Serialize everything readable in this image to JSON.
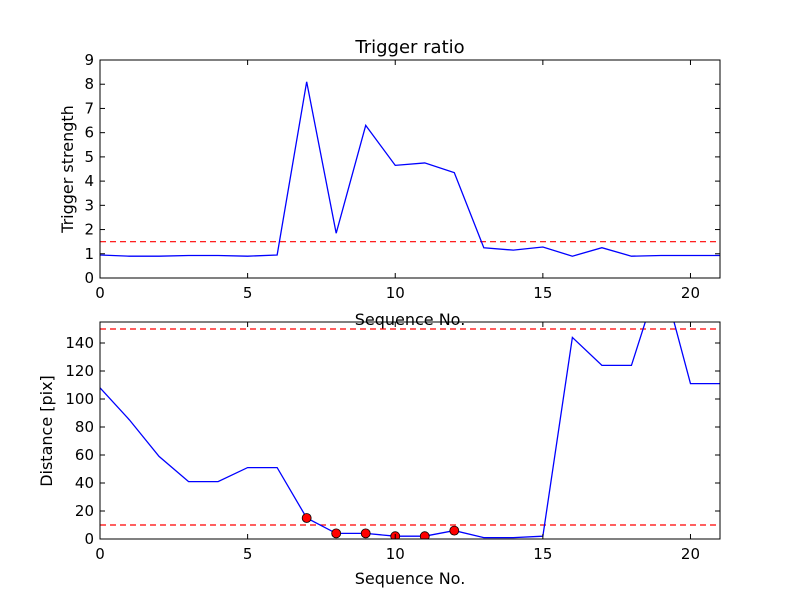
{
  "chart_data": [
    {
      "type": "line",
      "title": "Trigger ratio",
      "xlabel": "Sequence No.",
      "ylabel": "Trigger strength",
      "xlim": [
        0,
        21
      ],
      "ylim": [
        0,
        9
      ],
      "xticks": [
        0,
        5,
        10,
        15,
        20
      ],
      "yticks": [
        0,
        1,
        2,
        3,
        4,
        5,
        6,
        7,
        8,
        9
      ],
      "grid": false,
      "series": [
        {
          "color": "#0000ff",
          "style": "solid",
          "x": [
            0,
            1,
            2,
            3,
            4,
            5,
            6,
            7,
            8,
            9,
            10,
            11,
            12,
            13,
            14,
            15,
            16,
            17,
            18,
            19,
            20,
            21
          ],
          "y": [
            0.95,
            0.9,
            0.9,
            0.93,
            0.93,
            0.9,
            0.95,
            8.1,
            1.85,
            6.3,
            4.65,
            4.75,
            4.35,
            1.25,
            1.15,
            1.28,
            0.9,
            1.25,
            0.9,
            0.93,
            0.93,
            0.93
          ]
        }
      ],
      "hlines": [
        {
          "y": 1.5,
          "color": "#ff0000",
          "style": "dashed"
        }
      ]
    },
    {
      "type": "line",
      "title": "",
      "xlabel": "Sequence No.",
      "ylabel": "Distance [pix]",
      "xlim": [
        0,
        21
      ],
      "ylim": [
        0,
        155
      ],
      "xticks": [
        0,
        5,
        10,
        15,
        20
      ],
      "yticks": [
        0,
        20,
        40,
        60,
        80,
        100,
        120,
        140
      ],
      "grid": false,
      "series": [
        {
          "color": "#0000ff",
          "style": "solid",
          "x": [
            0,
            1,
            2,
            3,
            4,
            5,
            6,
            7,
            8,
            9,
            10,
            11,
            12,
            13,
            14,
            15,
            16,
            17,
            18,
            19,
            20,
            21
          ],
          "y": [
            108,
            85,
            59,
            41,
            41,
            51,
            51,
            15,
            4,
            4,
            2,
            2,
            6,
            1,
            1,
            2,
            144,
            124,
            124,
            190,
            111,
            111
          ]
        },
        {
          "color": "#ff0000",
          "style": "markers",
          "x": [
            7,
            8,
            9,
            10,
            11,
            12
          ],
          "y": [
            15,
            4,
            4,
            2,
            2,
            6
          ]
        }
      ],
      "hlines": [
        {
          "y": 150,
          "color": "#ff0000",
          "style": "dashed"
        },
        {
          "y": 10,
          "color": "#ff0000",
          "style": "dashed"
        }
      ]
    }
  ]
}
